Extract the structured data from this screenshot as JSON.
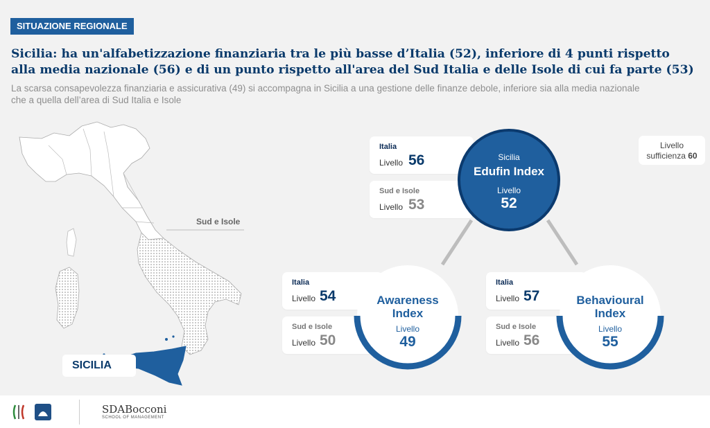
{
  "section_tag": "SITUAZIONE REGIONALE",
  "headline_line1": "Sicilia: ha un'alfabetizzazione finanziaria tra le più basse d’Italia (52), inferiore di 4 punti rispetto",
  "headline_line2": "alla media nazionale (56) e di un punto rispetto all'area del Sud Italia e delle Isole di cui fa parte (53)",
  "subhead_line1": "La scarsa consapevolezza finanziaria e assicurativa (49) si accompagna in Sicilia a una gestione delle finanze debole, inferiore sia alla media nazionale",
  "subhead_line2": "che a quella dell’area di Sud Italia e Isole",
  "map": {
    "area_label": "Sud e Isole",
    "region_label": "SICILIA"
  },
  "threshold": {
    "label": "Livello",
    "text": "sufficienza",
    "value": "60"
  },
  "edufin": {
    "region": "Sicilia",
    "name": "Edufin Index",
    "level_label": "Livello",
    "value": "52",
    "italia": {
      "title": "Italia",
      "label": "Livello",
      "value": "56"
    },
    "sud": {
      "title": "Sud e Isole",
      "label": "Livello",
      "value": "53"
    }
  },
  "awareness": {
    "name1": "Awareness",
    "name2": "Index",
    "level_label": "Livello",
    "value": "49",
    "italia": {
      "title": "Italia",
      "label": "Livello",
      "value": "54"
    },
    "sud": {
      "title": "Sud e Isole",
      "label": "Livello",
      "value": "50"
    }
  },
  "behavioural": {
    "name1": "Behavioural",
    "name2": "Index",
    "level_label": "Livello",
    "value": "55",
    "italia": {
      "title": "Italia",
      "label": "Livello",
      "value": "57"
    },
    "sud": {
      "title": "Sud e Isole",
      "label": "Livello",
      "value": "56"
    }
  },
  "footer": {
    "brand": "SDABocconi",
    "brand_sub": "SCHOOL OF MANAGEMENT"
  },
  "colors": {
    "navy": "#0a3a6b",
    "blue": "#1f5f9e",
    "grey_bg": "#f2f2f2"
  }
}
